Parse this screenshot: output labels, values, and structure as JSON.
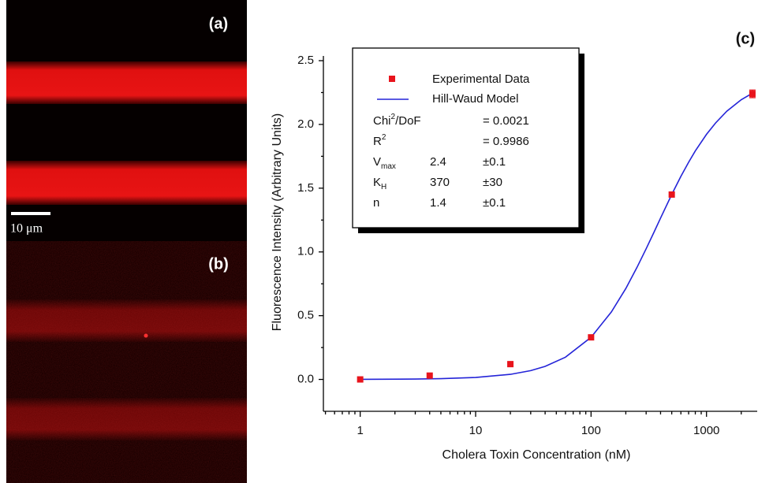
{
  "panels": {
    "a": "(a)",
    "b": "(b)",
    "scale_bar": "10 μm"
  },
  "chart_data": {
    "type": "scatter",
    "panel_label": "(c)",
    "x_label": "Cholera Toxin Concentration (nM)",
    "y_label": "Fluorescence Intensity (Arbitrary Units)",
    "xscale": "log",
    "xlim": [
      0.48,
      2750
    ],
    "xticks": [
      1,
      10,
      100,
      1000
    ],
    "ylim": [
      -0.25,
      2.5
    ],
    "yticks": [
      {
        "value": 0,
        "label": "0.0"
      },
      {
        "value": 0.5,
        "label": "0.5"
      },
      {
        "value": 1,
        "label": "1.0"
      },
      {
        "value": 1.5,
        "label": "1.5"
      },
      {
        "value": 2,
        "label": "2.0"
      },
      {
        "value": 2.5,
        "label": "2.5"
      }
    ],
    "series": [
      {
        "name": "Experimental Data",
        "color": "#e8141c",
        "x": [
          1,
          4,
          20,
          100,
          500,
          2500
        ],
        "values": [
          0.0,
          0.03,
          0.12,
          0.33,
          1.45,
          2.24
        ],
        "errors": [
          null,
          null,
          null,
          null,
          null,
          0.03
        ]
      },
      {
        "name": "Hill-Waud Model",
        "color": "#2424d8",
        "x": [
          1,
          3,
          5,
          10,
          20,
          30,
          40,
          60,
          100,
          150,
          200,
          250,
          300,
          350,
          400,
          500,
          600,
          700,
          800,
          1000,
          1200,
          1500,
          2000,
          2500
        ],
        "values": [
          0.0006,
          0.0028,
          0.0058,
          0.0152,
          0.0397,
          0.0691,
          0.102,
          0.1745,
          0.331,
          0.529,
          0.713,
          0.879,
          1.025,
          1.153,
          1.266,
          1.45,
          1.592,
          1.703,
          1.792,
          1.922,
          2.012,
          2.104,
          2.194,
          2.245
        ]
      }
    ],
    "legend_stats": [
      {
        "label": "Chi",
        "sup": "2",
        "tail": "/DoF",
        "value": "",
        "pm": "= 0.0021"
      },
      {
        "label": "R",
        "sup": "2",
        "tail": "",
        "value": "",
        "pm": "= 0.9986"
      },
      {
        "label": "V",
        "sub": "max",
        "tail": "",
        "value": "2.4",
        "pm": "±0.1"
      },
      {
        "label": "K",
        "sub": "H",
        "tail": "",
        "value": "370",
        "pm": "±30"
      },
      {
        "label": "n",
        "tail": "",
        "value": "1.4",
        "pm": "±0.1"
      }
    ]
  }
}
